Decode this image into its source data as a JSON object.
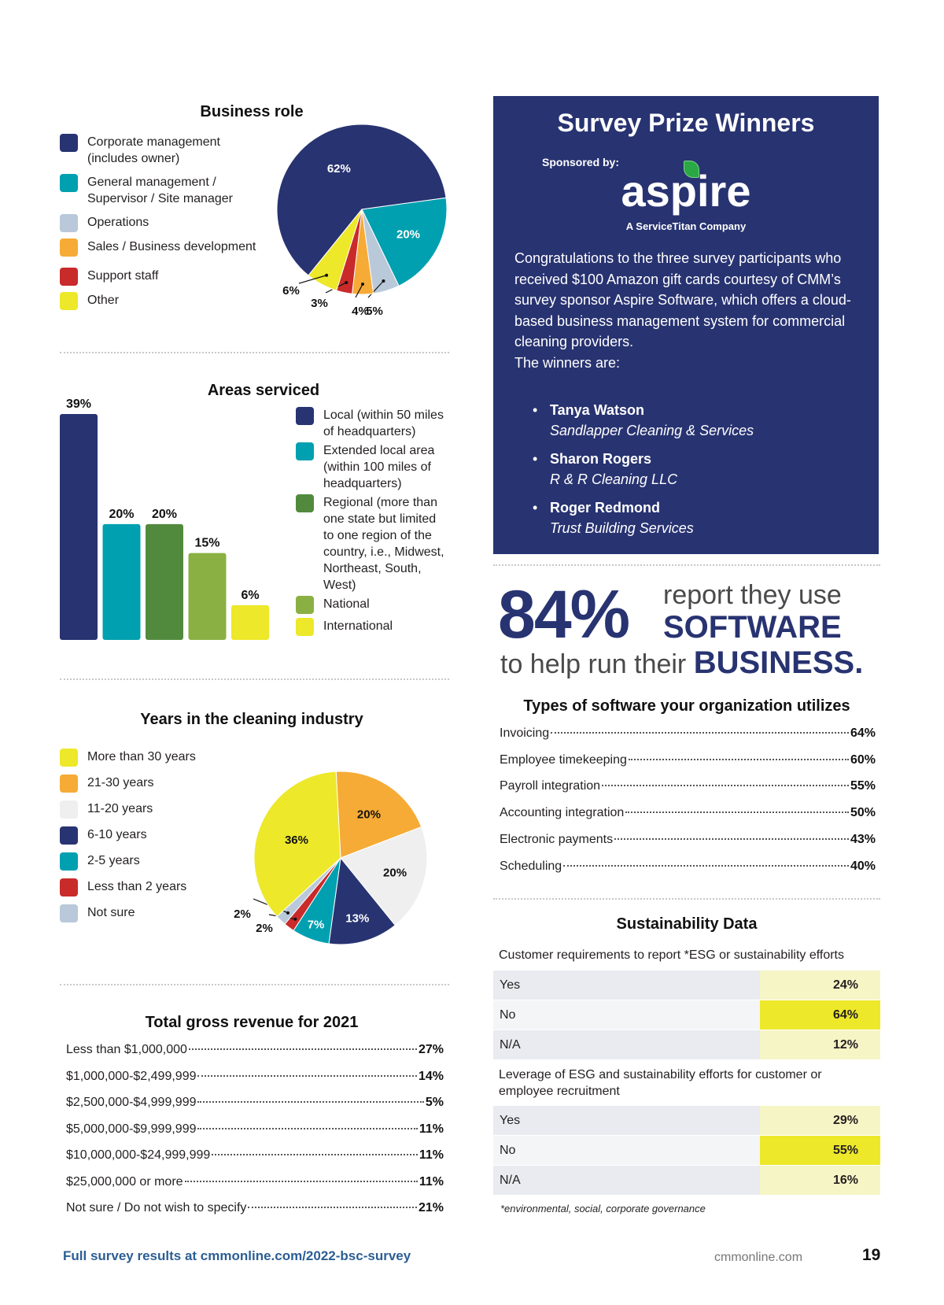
{
  "colors": {
    "navy": "#283371",
    "teal": "#00a0b0",
    "light_blue_gray": "#b9c9d9",
    "orange": "#f5ab35",
    "red": "#c92a2a",
    "yellow": "#ede82a",
    "dark_green": "#528a3d",
    "light_green": "#8ab043",
    "light_gray": "#efefef",
    "footer_blue": "#2c5e93",
    "row_gray": "#e9ebf0",
    "row_gray2": "#f4f5f7",
    "value_pale_yellow": "#f6f5c5",
    "value_yellow": "#ede82a"
  },
  "chart_data": [
    {
      "type": "pie",
      "title": "Business role",
      "categories": [
        "Corporate management (includes owner)",
        "General management / Supervisor / Site manager",
        "Operations",
        "Sales / Business development",
        "Support staff",
        "Other"
      ],
      "legend": [
        {
          "label": "Corporate management (includes owner)",
          "lines": [
            "Corporate management",
            "(includes owner)"
          ],
          "color": "#283371"
        },
        {
          "label": "General management / Supervisor / Site manager",
          "lines": [
            "General management /",
            "Supervisor / Site manager"
          ],
          "color": "#00a0b0"
        },
        {
          "label": "Operations",
          "lines": [
            "Operations"
          ],
          "color": "#b9c9d9"
        },
        {
          "label": "Sales / Business development",
          "lines": [
            "Sales / Business development"
          ],
          "color": "#f5ab35"
        },
        {
          "label": "Support staff",
          "lines": [
            "Support staff"
          ],
          "color": "#c92a2a"
        },
        {
          "label": "Other",
          "lines": [
            "Other"
          ],
          "color": "#ede82a"
        }
      ],
      "values": [
        62,
        20,
        5,
        4,
        3,
        6
      ],
      "value_labels": [
        "62%",
        "20%",
        "5%",
        "4%",
        "3%",
        "6%"
      ],
      "legend_position": "left"
    },
    {
      "type": "bar",
      "title": "Areas serviced",
      "categories": [
        "Local (within 50 miles of headquarters)",
        "Extended local area (within 100 miles of headquarters)",
        "Regional (more than one state but limited to one region of the country, i.e., Midwest, Northeast, South, West)",
        "National",
        "International"
      ],
      "legend": [
        {
          "lines": [
            "Local (within 50 miles",
            "of headquarters)"
          ],
          "color": "#283371"
        },
        {
          "lines": [
            "Extended local area",
            "(within 100 miles of",
            "headquarters)"
          ],
          "color": "#00a0b0"
        },
        {
          "lines": [
            "Regional (more than",
            "one state but limited",
            "to one region of the",
            "country, i.e., Midwest,",
            "Northeast, South,",
            "West)"
          ],
          "color": "#528a3d"
        },
        {
          "lines": [
            "National"
          ],
          "color": "#8ab043"
        },
        {
          "lines": [
            "International"
          ],
          "color": "#ede82a"
        }
      ],
      "values": [
        39,
        20,
        20,
        15,
        6
      ],
      "value_labels": [
        "39%",
        "20%",
        "20%",
        "15%",
        "6%"
      ],
      "ylim": [
        0,
        39
      ],
      "xlabel": "",
      "ylabel": "",
      "grid": false,
      "legend_position": "right"
    },
    {
      "type": "pie",
      "title": "Years in the cleaning industry",
      "categories": [
        "More than 30 years",
        "21-30 years",
        "11-20 years",
        "6-10 years",
        "2-5 years",
        "Less than 2 years",
        "Not sure"
      ],
      "legend": [
        {
          "lines": [
            "More than 30 years"
          ],
          "color": "#ede82a"
        },
        {
          "lines": [
            "21-30 years"
          ],
          "color": "#f5ab35"
        },
        {
          "lines": [
            "11-20 years"
          ],
          "color": "#efefef"
        },
        {
          "lines": [
            "6-10 years"
          ],
          "color": "#283371"
        },
        {
          "lines": [
            "2-5 years"
          ],
          "color": "#00a0b0"
        },
        {
          "lines": [
            "Less than 2 years"
          ],
          "color": "#c92a2a"
        },
        {
          "lines": [
            "Not sure"
          ],
          "color": "#b9c9d9"
        }
      ],
      "values": [
        36,
        20,
        20,
        13,
        7,
        2,
        2
      ],
      "value_labels": [
        "36%",
        "20%",
        "20%",
        "13%",
        "7%",
        "2%",
        "2%"
      ],
      "legend_position": "left"
    }
  ],
  "revenue": {
    "title": "Total gross revenue for 2021",
    "rows": [
      {
        "label": "Less than $1,000,000",
        "value": "27%"
      },
      {
        "label": "$1,000,000-$2,499,999",
        "value": "14%"
      },
      {
        "label": "$2,500,000-$4,999,999",
        "value": "5%"
      },
      {
        "label": "$5,000,000-$9,999,999",
        "value": "11%"
      },
      {
        "label": "$10,000,000-$24,999,999",
        "value": "11%"
      },
      {
        "label": "$25,000,000 or more",
        "value": "11%"
      },
      {
        "label": "Not sure / Do not wish to specify",
        "value": "21%"
      }
    ]
  },
  "prize": {
    "title": "Survey Prize Winners",
    "sponsored_by": "Sponsored by:",
    "sponsor_logo": "aspire",
    "sponsor_tagline": "A ServiceTitan Company",
    "body": "Congratulations to the three survey participants who received $100 Amazon gift cards courtesy of CMM’s survey sponsor Aspire Software, which offers a cloud-based business management system for commercial cleaning providers.",
    "winners_intro": "The winners are:",
    "winners": [
      {
        "name": "Tanya Watson",
        "company": "Sandlapper Cleaning & Services"
      },
      {
        "name": "Sharon Rogers",
        "company": "R & R Cleaning LLC"
      },
      {
        "name": "Roger Redmond",
        "company": "Trust Building Services"
      }
    ]
  },
  "software_stat": {
    "percent": "84%",
    "line1": "report they use",
    "line2": "SOFTWARE",
    "line3_prefix": "to help run their ",
    "line3_bold": "BUSINESS."
  },
  "software_types": {
    "title": "Types of software your organization utilizes",
    "rows": [
      {
        "label": "Invoicing",
        "value": "64%"
      },
      {
        "label": "Employee timekeeping",
        "value": "60%"
      },
      {
        "label": "Payroll integration",
        "value": "55%"
      },
      {
        "label": "Accounting integration",
        "value": "50%"
      },
      {
        "label": "Electronic payments",
        "value": "43%"
      },
      {
        "label": "Scheduling",
        "value": "40%"
      }
    ]
  },
  "sustainability": {
    "title": "Sustainability Data",
    "questions": [
      {
        "question": "Customer requirements to report *ESG or sustainability efforts",
        "rows": [
          {
            "label": "Yes",
            "value": "24%",
            "highlight": false
          },
          {
            "label": "No",
            "value": "64%",
            "highlight": true
          },
          {
            "label": "N/A",
            "value": "12%",
            "highlight": false
          }
        ]
      },
      {
        "question": "Leverage of ESG and sustainability efforts for customer or employee recruitment",
        "rows": [
          {
            "label": "Yes",
            "value": "29%",
            "highlight": false
          },
          {
            "label": "No",
            "value": "55%",
            "highlight": true
          },
          {
            "label": "N/A",
            "value": "16%",
            "highlight": false
          }
        ]
      }
    ],
    "footnote": "*environmental, social, corporate governance"
  },
  "footer": {
    "link_text": "Full survey results at cmmonline.com/2022-bsc-survey",
    "site": "cmmonline.com",
    "page_number": "19"
  }
}
